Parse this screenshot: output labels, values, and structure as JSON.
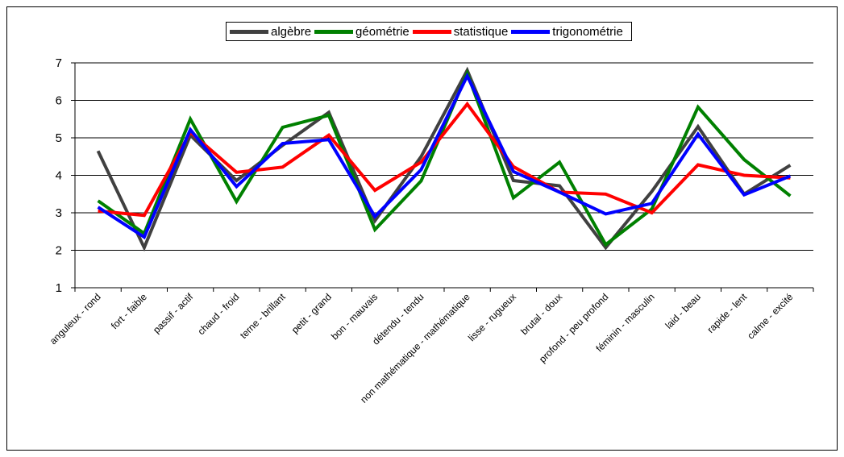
{
  "chart_data": {
    "type": "line",
    "title": "",
    "xlabel": "",
    "ylabel": "",
    "ylim": [
      1,
      7
    ],
    "yticks": [
      1,
      2,
      3,
      4,
      5,
      6,
      7
    ],
    "grid": "horizontal",
    "legend_position": "top",
    "categories": [
      "anguleux - rond",
      "fort - faible",
      "passif - actif",
      "chaud - froid",
      "terne - brillant",
      "petit - grand",
      "bon - mauvais",
      "détendu - tendu",
      "non mathématique - mathématique",
      "lisse - rugueux",
      "brutal - doux",
      "profond - peu profond",
      "féminin - masculin",
      "laid - beau",
      "rapide - lent",
      "calme - excité"
    ],
    "series": [
      {
        "name": "algèbre",
        "color": "#404040",
        "values": [
          4.65,
          2.07,
          5.07,
          3.86,
          4.8,
          5.68,
          2.79,
          4.5,
          6.8,
          3.86,
          3.72,
          2.07,
          3.57,
          5.3,
          3.5,
          4.27
        ]
      },
      {
        "name": "géométrie",
        "color": "#008000",
        "values": [
          3.32,
          2.45,
          5.5,
          3.3,
          5.28,
          5.6,
          2.55,
          3.85,
          6.72,
          3.4,
          4.35,
          2.15,
          3.1,
          5.82,
          4.42,
          3.45
        ]
      },
      {
        "name": "statistique",
        "color": "#ff0000",
        "values": [
          3.05,
          2.93,
          5.15,
          4.08,
          4.22,
          5.07,
          3.6,
          4.35,
          5.9,
          4.23,
          3.55,
          3.5,
          3.0,
          4.28,
          4.0,
          3.93
        ]
      },
      {
        "name": "trigonométrie",
        "color": "#0000ff",
        "values": [
          3.15,
          2.35,
          5.22,
          3.7,
          4.85,
          4.95,
          2.9,
          4.15,
          6.65,
          4.1,
          3.55,
          2.97,
          3.25,
          5.1,
          3.48,
          3.98
        ]
      }
    ]
  }
}
